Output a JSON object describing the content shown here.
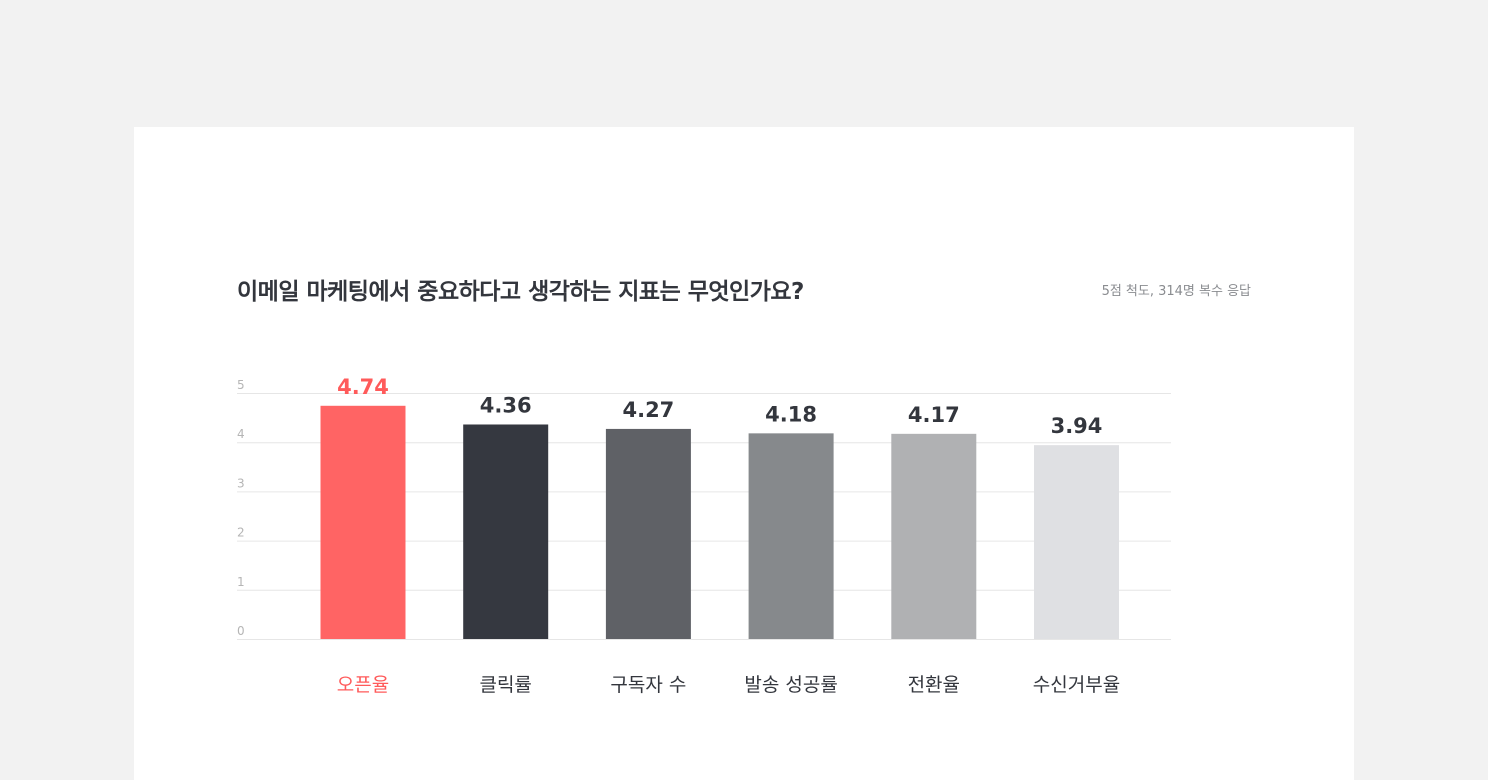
{
  "chart_data": {
    "type": "bar",
    "title": "이메일 마케팅에서 중요하다고 생각하는 지표는 무엇인가요?",
    "subtitle": "5점 척도, 314명 복수 응답",
    "categories": [
      "오픈율",
      "클릭률",
      "구독자 수",
      "발송 성공률",
      "전환율",
      "수신거부율"
    ],
    "values": [
      4.74,
      4.36,
      4.27,
      4.18,
      4.17,
      3.94
    ],
    "value_labels": [
      "4.74",
      "4.36",
      "4.27",
      "4.18",
      "4.17",
      "3.94"
    ],
    "colors": [
      "#ff6464",
      "#353840",
      "#5f6166",
      "#86898c",
      "#b0b1b3",
      "#dfe0e3"
    ],
    "highlight_color": "#ff5a5a",
    "label_color": "#33363d",
    "ylim": [
      0,
      5
    ],
    "yticks": [
      "0",
      "1",
      "2",
      "3",
      "4",
      "5"
    ],
    "grid": true,
    "xlabel": "",
    "ylabel": ""
  }
}
